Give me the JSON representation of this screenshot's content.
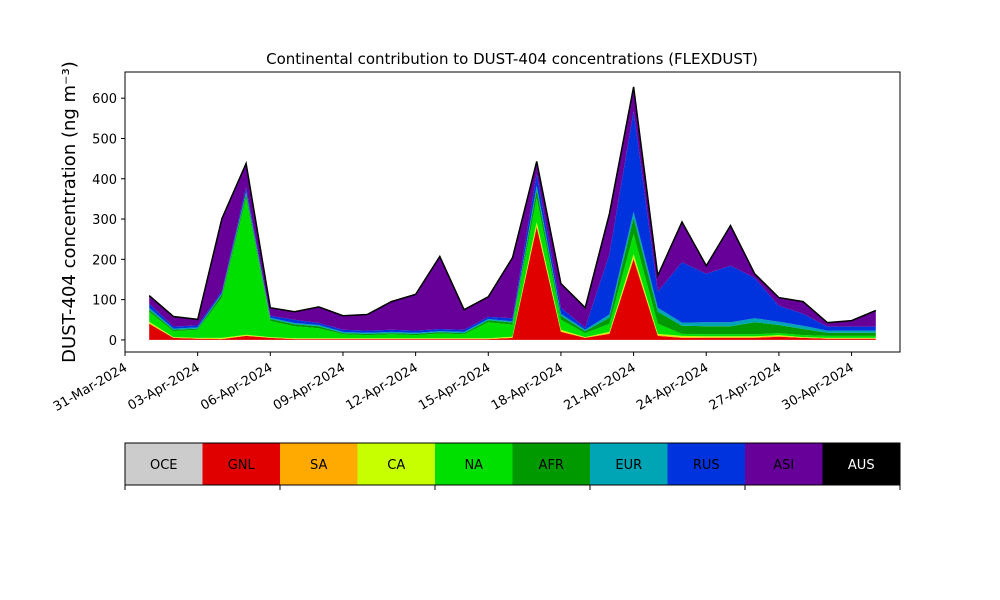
{
  "chart_data": {
    "type": "area",
    "title": "Continental contribution to DUST-404 concentrations (FLEXDUST)",
    "xlabel": "",
    "ylabel": "DUST-404 concentration (ng m⁻³)",
    "x_range": [
      "2024-03-31",
      "2024-05-02"
    ],
    "y_range": [
      -30,
      665
    ],
    "y_ticks": [
      0,
      100,
      200,
      300,
      400,
      500,
      600
    ],
    "x_tick_dates": [
      "2024-03-31",
      "2024-04-03",
      "2024-04-06",
      "2024-04-09",
      "2024-04-12",
      "2024-04-15",
      "2024-04-18",
      "2024-04-21",
      "2024-04-24",
      "2024-04-27",
      "2024-04-30"
    ],
    "x_tick_labels": [
      "31-Mar-2024",
      "03-Apr-2024",
      "06-Apr-2024",
      "09-Apr-2024",
      "12-Apr-2024",
      "15-Apr-2024",
      "18-Apr-2024",
      "21-Apr-2024",
      "24-Apr-2024",
      "27-Apr-2024",
      "30-Apr-2024"
    ],
    "grid": false,
    "stacked": true,
    "outline_color": "#000000",
    "x": [
      "2024-04-01",
      "2024-04-02",
      "2024-04-03",
      "2024-04-04",
      "2024-04-05",
      "2024-04-06",
      "2024-04-07",
      "2024-04-08",
      "2024-04-09",
      "2024-04-10",
      "2024-04-11",
      "2024-04-12",
      "2024-04-13",
      "2024-04-14",
      "2024-04-15",
      "2024-04-16",
      "2024-04-17",
      "2024-04-18",
      "2024-04-19",
      "2024-04-20",
      "2024-04-21",
      "2024-04-22",
      "2024-04-23",
      "2024-04-24",
      "2024-04-25",
      "2024-04-26",
      "2024-04-27",
      "2024-04-28",
      "2024-04-29",
      "2024-04-30",
      "2024-05-01"
    ],
    "series": [
      {
        "name": "OCE",
        "color": "#cccccc",
        "values": [
          0,
          0,
          0,
          0,
          0,
          0,
          0,
          0,
          0,
          0,
          0,
          0,
          0,
          0,
          0,
          0,
          0,
          0,
          0,
          0,
          0,
          0,
          0,
          0,
          0,
          0,
          0,
          0,
          0,
          0,
          0
        ]
      },
      {
        "name": "GNL",
        "color": "#e00000",
        "values": [
          40,
          5,
          3,
          2,
          10,
          5,
          2,
          2,
          2,
          2,
          2,
          2,
          2,
          2,
          2,
          5,
          280,
          20,
          5,
          15,
          200,
          10,
          5,
          5,
          5,
          5,
          8,
          5,
          3,
          3,
          3
        ]
      },
      {
        "name": "SA",
        "color": "#ffaa00",
        "values": [
          2,
          1,
          1,
          1,
          1,
          1,
          1,
          1,
          1,
          1,
          1,
          1,
          1,
          1,
          1,
          1,
          5,
          2,
          1,
          2,
          5,
          2,
          2,
          2,
          2,
          2,
          2,
          1,
          1,
          1,
          1
        ]
      },
      {
        "name": "CA",
        "color": "#c8ff00",
        "values": [
          3,
          1,
          1,
          2,
          2,
          1,
          1,
          1,
          1,
          1,
          1,
          1,
          1,
          1,
          1,
          2,
          8,
          3,
          1,
          3,
          8,
          3,
          3,
          2,
          2,
          2,
          2,
          1,
          1,
          1,
          1
        ]
      },
      {
        "name": "NA",
        "color": "#00e000",
        "values": [
          25,
          15,
          20,
          100,
          340,
          40,
          30,
          25,
          10,
          8,
          10,
          8,
          12,
          10,
          40,
          30,
          60,
          25,
          10,
          20,
          50,
          25,
          5,
          5,
          5,
          5,
          5,
          5,
          5,
          5,
          5
        ]
      },
      {
        "name": "AFR",
        "color": "#009900",
        "values": [
          5,
          3,
          3,
          8,
          10,
          5,
          5,
          5,
          3,
          3,
          3,
          3,
          3,
          3,
          5,
          5,
          20,
          10,
          5,
          15,
          40,
          30,
          20,
          20,
          20,
          30,
          20,
          15,
          8,
          8,
          8
        ]
      },
      {
        "name": "EUR",
        "color": "#00a5b5",
        "values": [
          5,
          3,
          3,
          3,
          5,
          3,
          3,
          3,
          3,
          3,
          3,
          3,
          3,
          3,
          3,
          3,
          10,
          5,
          3,
          8,
          15,
          10,
          8,
          10,
          10,
          10,
          8,
          8,
          5,
          5,
          5
        ]
      },
      {
        "name": "RUS",
        "color": "#0033dd",
        "values": [
          10,
          5,
          5,
          5,
          10,
          5,
          8,
          5,
          5,
          5,
          5,
          5,
          5,
          5,
          5,
          8,
          30,
          15,
          5,
          150,
          250,
          40,
          150,
          120,
          140,
          100,
          40,
          30,
          10,
          10,
          10
        ]
      },
      {
        "name": "ASI",
        "color": "#660099",
        "values": [
          20,
          25,
          15,
          180,
          60,
          20,
          20,
          40,
          35,
          40,
          70,
          90,
          180,
          50,
          50,
          150,
          30,
          60,
          50,
          100,
          60,
          40,
          100,
          20,
          100,
          10,
          20,
          30,
          10,
          15,
          40
        ]
      },
      {
        "name": "AUS",
        "color": "#000000",
        "values": [
          0,
          0,
          0,
          0,
          0,
          0,
          0,
          0,
          0,
          0,
          0,
          0,
          0,
          0,
          0,
          0,
          0,
          0,
          0,
          0,
          0,
          0,
          0,
          0,
          0,
          0,
          0,
          0,
          0,
          0,
          0
        ]
      }
    ],
    "legend": {
      "placement": "bottom",
      "items": [
        {
          "label": "OCE",
          "color": "#cccccc",
          "text_color": "#000000"
        },
        {
          "label": "GNL",
          "color": "#e00000",
          "text_color": "#000000"
        },
        {
          "label": "SA",
          "color": "#ffaa00",
          "text_color": "#000000"
        },
        {
          "label": "CA",
          "color": "#c8ff00",
          "text_color": "#000000"
        },
        {
          "label": "NA",
          "color": "#00e000",
          "text_color": "#000000"
        },
        {
          "label": "AFR",
          "color": "#009900",
          "text_color": "#000000"
        },
        {
          "label": "EUR",
          "color": "#00a5b5",
          "text_color": "#000000"
        },
        {
          "label": "RUS",
          "color": "#0033dd",
          "text_color": "#000000"
        },
        {
          "label": "ASI",
          "color": "#660099",
          "text_color": "#000000"
        },
        {
          "label": "AUS",
          "color": "#000000",
          "text_color": "#ffffff"
        }
      ]
    }
  }
}
